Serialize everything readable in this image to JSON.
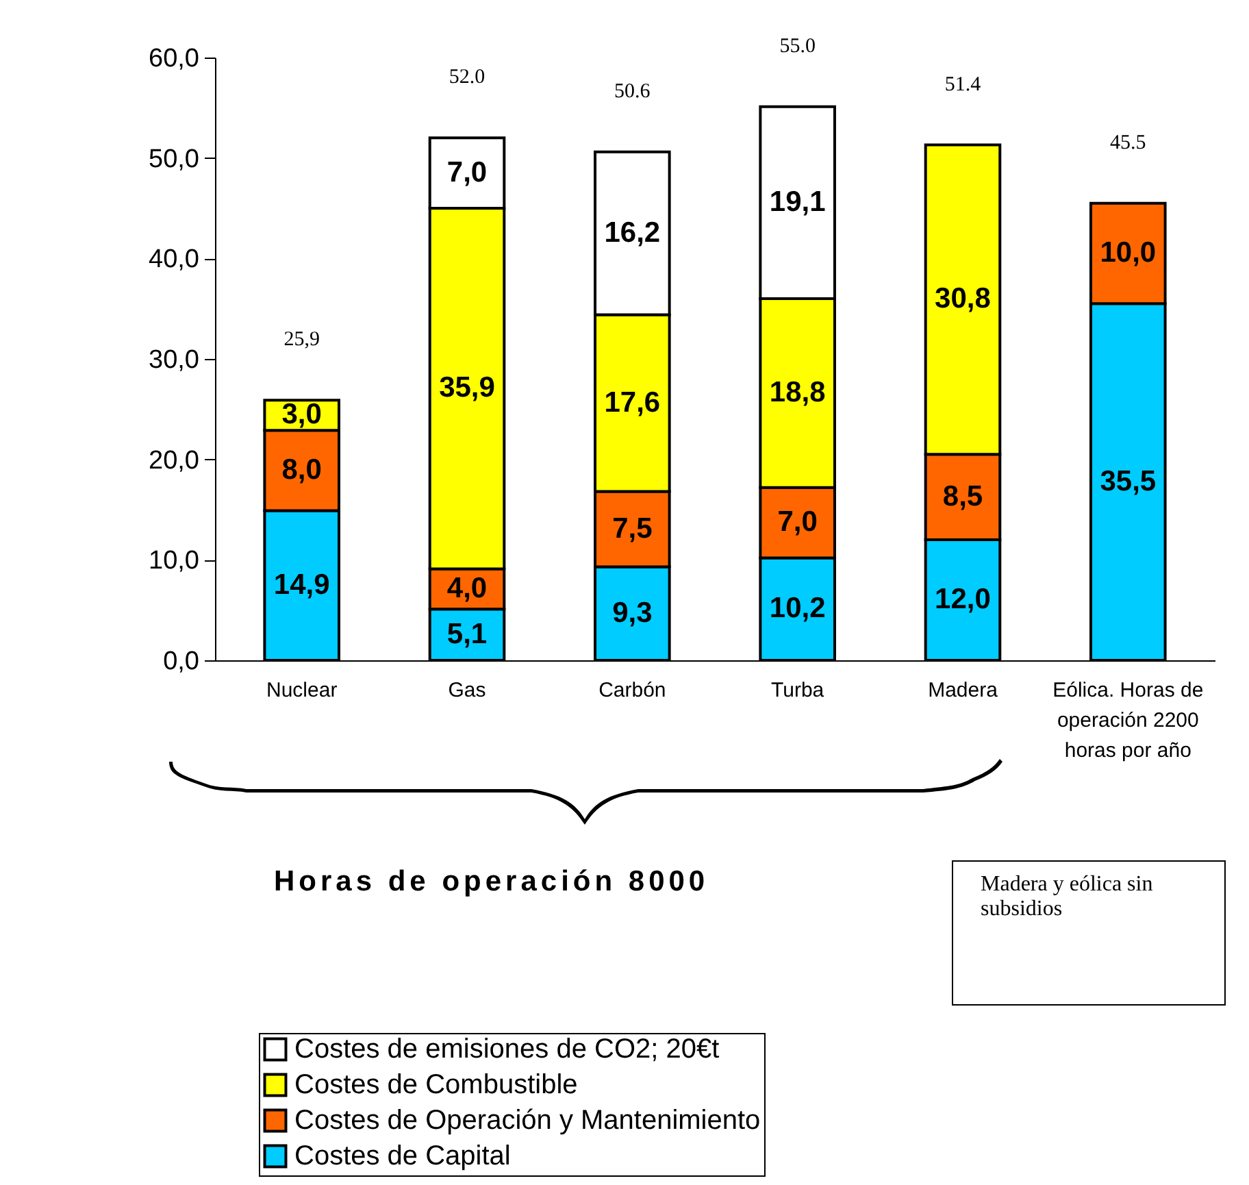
{
  "chart_data": {
    "type": "bar",
    "stacked": true,
    "categories": [
      "Nuclear",
      "Gas",
      "Carbón",
      "Turba",
      "Madera",
      "Eólica. Horas de operación 2200 horas por año"
    ],
    "series": [
      {
        "name": "Costes de Capital",
        "color": "#00ccff",
        "values": [
          14.9,
          5.1,
          9.3,
          10.2,
          12.0,
          35.5
        ],
        "value_labels": [
          "14,9",
          "5,1",
          "9,3",
          "10,2",
          "12,0",
          "35,5"
        ]
      },
      {
        "name": "Costes de Operación y Mantenimiento",
        "color": "#ff6600",
        "values": [
          8.0,
          4.0,
          7.5,
          7.0,
          8.5,
          10.0
        ],
        "value_labels": [
          "8,0",
          "4,0",
          "7,5",
          "7,0",
          "8,5",
          "10,0"
        ]
      },
      {
        "name": "Costes de Combustible",
        "color": "#ffff00",
        "values": [
          3.0,
          35.9,
          17.6,
          18.8,
          30.8,
          null
        ],
        "value_labels": [
          "3,0",
          "35,9",
          "17,6",
          "18,8",
          "30,8",
          null
        ]
      },
      {
        "name": "Costes de emisiones de CO2; 20€t",
        "color": "#ffffff",
        "values": [
          null,
          7.0,
          16.2,
          19.1,
          null,
          null
        ],
        "value_labels": [
          null,
          "7,0",
          "16,2",
          "19,1",
          null,
          null
        ]
      }
    ],
    "totals": [
      "25,9",
      "52.0",
      "50.6",
      "55.0",
      "51.4",
      "45.5"
    ],
    "ylim": [
      0,
      60
    ],
    "yticks": [
      {
        "value": 0,
        "label": "0,0"
      },
      {
        "value": 10,
        "label": "10,0"
      },
      {
        "value": 20,
        "label": "20,0"
      },
      {
        "value": 30,
        "label": "30,0"
      },
      {
        "value": 40,
        "label": "40,0"
      },
      {
        "value": 50,
        "label": "50,0"
      },
      {
        "value": 60,
        "label": "60,0"
      }
    ],
    "legend": "bottom",
    "annotations": [
      "Horas de operación 8000",
      "Madera y eólica sin subsidios"
    ]
  }
}
